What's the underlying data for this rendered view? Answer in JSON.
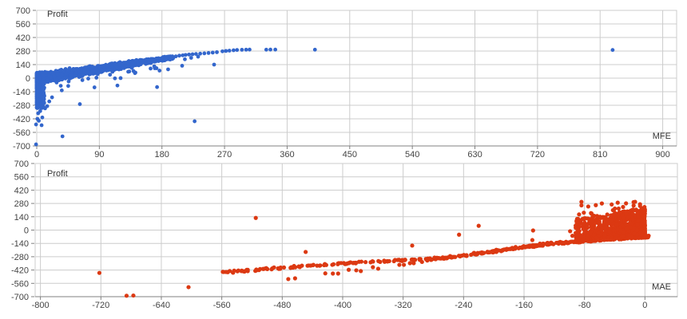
{
  "page": {
    "background": "#ffffff",
    "grid_color": "#cccccc",
    "axis_line_color": "#808080",
    "tick_text_color": "#444444",
    "label_text_color": "#333333"
  },
  "chart_data": [
    {
      "type": "scatter",
      "series_name": "profit-vs-mfe",
      "title": "Profit",
      "ylabel": "Profit",
      "xlabel": "MFE",
      "color": "#3366CC",
      "dot_radius": 2.4,
      "seed": 101,
      "xlim": [
        0,
        920
      ],
      "ylim": [
        -700,
        700
      ],
      "x_ticks": [
        0,
        90,
        180,
        270,
        360,
        450,
        540,
        630,
        720,
        810,
        900
      ],
      "y_ticks": [
        700,
        560,
        420,
        280,
        140,
        0,
        -140,
        -280,
        -420,
        -560,
        -700
      ],
      "grid": true,
      "legend": "none",
      "points": [
        [
          196,
          205
        ],
        [
          200,
          225
        ],
        [
          205,
          232
        ],
        [
          210,
          236
        ],
        [
          214,
          240
        ],
        [
          219,
          244
        ],
        [
          224,
          247
        ],
        [
          229,
          250
        ],
        [
          235,
          253
        ],
        [
          241,
          256
        ],
        [
          247,
          260
        ],
        [
          253,
          264
        ],
        [
          259,
          268
        ],
        [
          267,
          277
        ],
        [
          272,
          281
        ],
        [
          277,
          284
        ],
        [
          283,
          288
        ],
        [
          288,
          291
        ],
        [
          295,
          293
        ],
        [
          301,
          294
        ],
        [
          306,
          295
        ],
        [
          330,
          294
        ],
        [
          336,
          295
        ],
        [
          343,
          295
        ],
        [
          400,
          294
        ],
        [
          828,
          291
        ],
        [
          222,
          210
        ],
        [
          232,
          222
        ],
        [
          255,
          140
        ],
        [
          213,
          195
        ],
        [
          62,
          -268
        ],
        [
          37,
          -601
        ],
        [
          -1,
          -684
        ],
        [
          227,
          -445
        ],
        [
          22,
          -198
        ],
        [
          36,
          -126
        ],
        [
          83,
          -95
        ],
        [
          116,
          -76
        ],
        [
          173,
          -92
        ],
        [
          1,
          -420
        ],
        [
          8,
          -406
        ],
        [
          -1,
          -478
        ],
        [
          7,
          -486
        ],
        [
          2,
          -363
        ],
        [
          12,
          -312
        ],
        [
          5,
          -340
        ],
        [
          3,
          -440
        ],
        [
          15,
          -289
        ],
        [
          10,
          -260
        ],
        [
          18,
          -240
        ],
        [
          6,
          -225
        ]
      ],
      "clusters": [
        {
          "kind": "wedge",
          "n": 1500,
          "x_max": 196,
          "x_skew": 1.7,
          "c0": -5,
          "slope": 1.12,
          "hw0": 68,
          "hw1": 20
        },
        {
          "kind": "column",
          "n": 430,
          "x_spread": 11,
          "x_pow": 2,
          "y_top": 55,
          "y_bottom": -315,
          "y_skew": 1.6
        },
        {
          "kind": "dangles",
          "n": 26,
          "x_min": 15,
          "x_max": 215,
          "c0": -5,
          "slope": 1.12,
          "drop_min": 35,
          "drop_max": 130
        }
      ]
    },
    {
      "type": "scatter",
      "series_name": "profit-vs-mae",
      "title": "Profit",
      "ylabel": "Profit",
      "xlabel": "MAE",
      "color": "#DC3912",
      "dot_radius": 2.6,
      "seed": 202,
      "xlim": [
        -807,
        43
      ],
      "ylim": [
        -700,
        700
      ],
      "x_ticks": [
        -800,
        -720,
        -640,
        -560,
        -480,
        -400,
        -320,
        -240,
        -160,
        -80,
        0
      ],
      "y_ticks": [
        700,
        560,
        420,
        280,
        140,
        0,
        -140,
        -280,
        -420,
        -560,
        -700
      ],
      "grid": true,
      "legend": "none",
      "points": [
        [
          -722,
          -450
        ],
        [
          -686,
          -690
        ],
        [
          -677,
          -688
        ],
        [
          -604,
          -600
        ],
        [
          -545,
          -448
        ],
        [
          -534,
          -431
        ],
        [
          -515,
          128
        ],
        [
          -472,
          -515
        ],
        [
          -463,
          -507
        ],
        [
          -449,
          -230
        ],
        [
          -423,
          -455
        ],
        [
          -413,
          -457
        ],
        [
          -406,
          -457
        ],
        [
          -392,
          -417
        ],
        [
          -382,
          -423
        ],
        [
          -376,
          -431
        ],
        [
          -360,
          -390
        ],
        [
          -353,
          -406
        ],
        [
          -325,
          -365
        ],
        [
          -319,
          -365
        ],
        [
          -311,
          -348
        ],
        [
          -308,
          -163
        ],
        [
          -306,
          -348
        ],
        [
          -295,
          -335
        ],
        [
          -288,
          -320
        ],
        [
          -283,
          -314
        ],
        [
          -277,
          -306
        ],
        [
          -269,
          -298
        ],
        [
          -262,
          -296
        ],
        [
          -256,
          -289
        ],
        [
          -246,
          -48
        ],
        [
          -220,
          45
        ],
        [
          -148,
          -4
        ],
        [
          -149,
          -105
        ],
        [
          -99,
          -12
        ],
        [
          -96,
          -60
        ],
        [
          -84,
          297
        ],
        [
          -84,
          260
        ],
        [
          -57,
          280
        ],
        [
          -44,
          269
        ],
        [
          -36,
          288
        ],
        [
          -25,
          281
        ],
        [
          -15,
          294
        ],
        [
          -13,
          297
        ],
        [
          -65,
          262
        ],
        [
          -75,
          248
        ]
      ],
      "clusters": [
        {
          "kind": "trail",
          "n": 520,
          "x_skew": 2.4,
          "jitter_x": 5,
          "jitter_y": 9,
          "keypoints": [
            [
              -560,
              -445
            ],
            [
              -420,
              -360
            ],
            [
              -260,
              -290
            ],
            [
              -130,
              -145
            ],
            [
              0,
              -68
            ]
          ]
        },
        {
          "kind": "blob",
          "n": 1000,
          "x_span": 92,
          "x_skew": 1.6,
          "base0": -71,
          "base_slope": 0.34,
          "top0": 232,
          "top_slope": 1.25,
          "y_skew": 1.7
        },
        {
          "kind": "crown",
          "n": 16,
          "x_span": 88,
          "top0": 232,
          "top_slope": 1.25,
          "lift_max": 55
        }
      ]
    }
  ]
}
